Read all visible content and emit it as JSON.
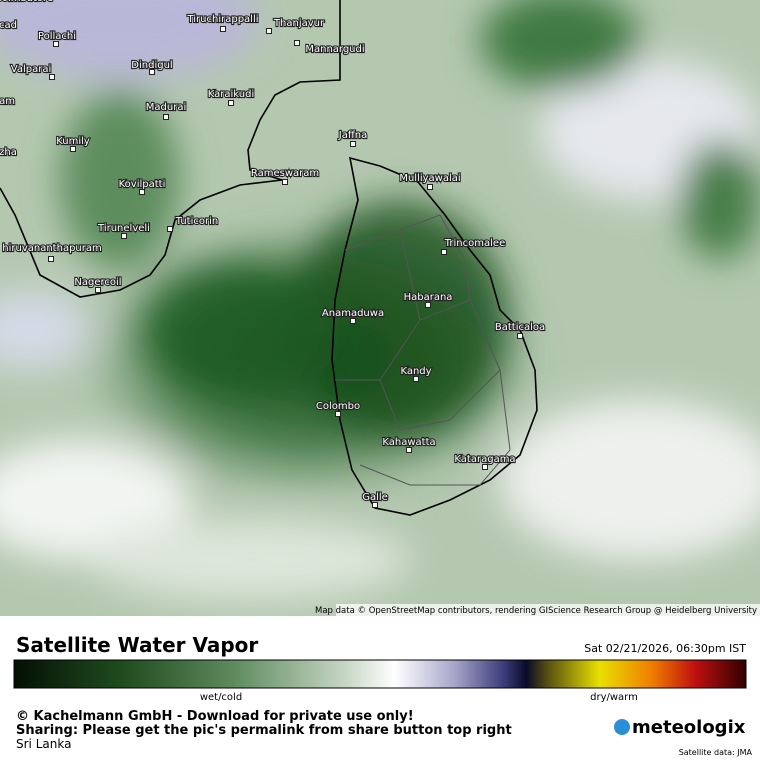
{
  "map": {
    "places": [
      "Coimbatore",
      "cad",
      "Pollachi",
      "Valparai",
      "Dindigul",
      "Tiruchirappalli",
      "Thanjavur",
      "Mannargudi",
      "Madurai",
      "Karaikudi",
      "am",
      "Kumily",
      "zha",
      "Jaffna",
      "Rameswaram",
      "Mulliyawalai",
      "Kovilpatti",
      "Tirunelveli",
      "Tuticorin",
      "hiruvananthapuram",
      "Trincomalee",
      "Nagercoil",
      "Habarana",
      "Anamaduwa",
      "Batticaloa",
      "Kandy",
      "Colombo",
      "Kahawatta",
      "Kataragama",
      "Galle"
    ],
    "attribution": "Map data © OpenStreetMap contributors, rendering GIScience Research Group @ Heidelberg University"
  },
  "footer": {
    "title": "Satellite Water Vapor",
    "timestamp": "Sat 02/21/2026, 06:30pm IST",
    "legend_left": "wet/cold",
    "legend_right": "dry/warm",
    "copyright": "© Kachelmann GmbH - Download for private use only!",
    "sharing": "Sharing: Please get the pic's permalink from share button top right",
    "region": "Sri Lanka",
    "logo": "meteologix",
    "source": "Satellite data: JMA"
  }
}
